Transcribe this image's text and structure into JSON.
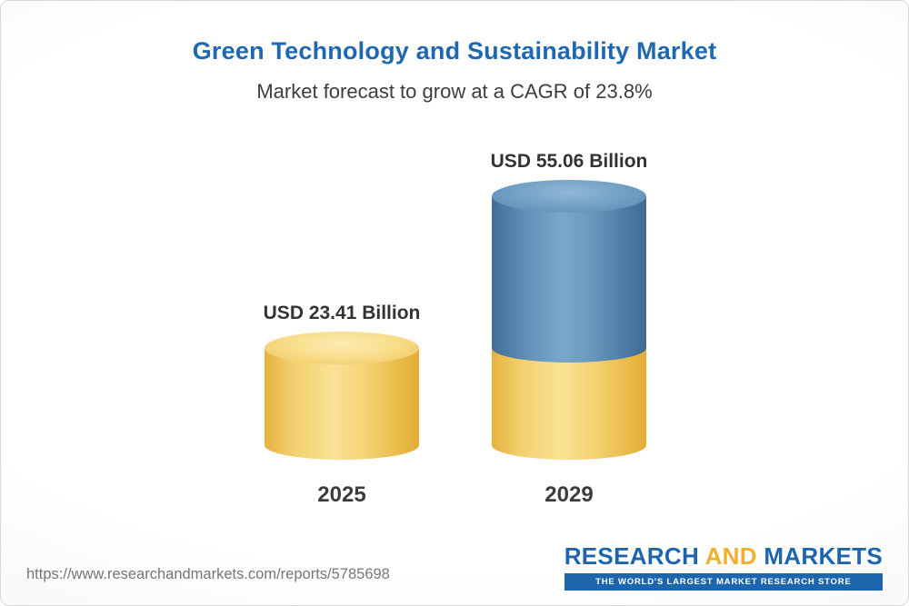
{
  "header": {
    "title": "Green Technology and Sustainability Market",
    "subtitle": "Market forecast to grow at a CAGR of 23.8%"
  },
  "chart_data": {
    "type": "bar",
    "categories": [
      "2025",
      "2029"
    ],
    "values": [
      23.41,
      55.06
    ],
    "value_labels": [
      "USD 23.41 Billion",
      "USD 55.06 Billion"
    ],
    "unit": "USD Billion",
    "cagr": "23.8%",
    "title": "Green Technology and Sustainability Market",
    "subtitle": "Market forecast to grow at a CAGR of 23.8%",
    "legend_position": "none",
    "grid": false,
    "colors": {
      "bar_2025": "#f3cf6d",
      "bar_2029_base": "#f3cf6d",
      "bar_2029_growth": "#5d8db6",
      "title_accent": "#1e68b2"
    }
  },
  "footer": {
    "url": "https://www.researchandmarkets.com/reports/5785698",
    "logo": {
      "word_research": "RESEARCH",
      "word_and": " AND ",
      "word_markets": "MARKETS",
      "tagline": "THE WORLD'S LARGEST MARKET RESEARCH STORE"
    }
  }
}
